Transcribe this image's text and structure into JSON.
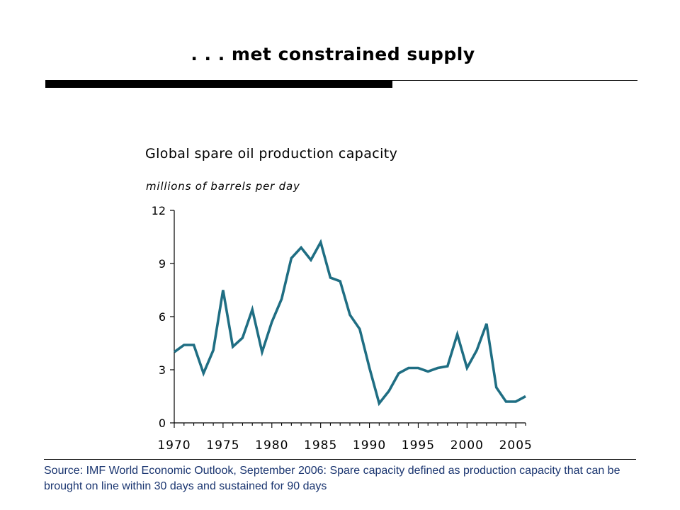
{
  "slide": {
    "title": ". . . met constrained supply",
    "source": "Source: IMF World Economic Outlook, September 2006: Spare capacity defined as production capacity that can be brought on line within 30 days and sustained for 90 days"
  },
  "chart_data": {
    "type": "line",
    "title": "Global spare oil production capacity",
    "subtitle": "millions of barrels per day",
    "xlabel": "",
    "ylabel": "",
    "xlim": [
      1970,
      2006
    ],
    "ylim": [
      0,
      12
    ],
    "x_ticks": [
      1970,
      1975,
      1980,
      1985,
      1990,
      1995,
      2000,
      2005
    ],
    "y_ticks": [
      0,
      3,
      6,
      9,
      12
    ],
    "grid": false,
    "line_color": "#1f6e83",
    "series": [
      {
        "x": [
          1970,
          1971,
          1972,
          1973,
          1974,
          1975,
          1976,
          1977,
          1978,
          1979,
          1980,
          1981,
          1982,
          1983,
          1984,
          1985,
          1986,
          1987,
          1988,
          1989,
          1990,
          1991,
          1992,
          1993,
          1994,
          1995,
          1996,
          1997,
          1998,
          1999,
          2000,
          2001,
          2002,
          2003,
          2004,
          2005,
          2006
        ],
        "values": [
          4.0,
          4.4,
          4.4,
          2.8,
          4.1,
          7.5,
          4.3,
          4.8,
          6.4,
          4.0,
          5.7,
          7.0,
          9.3,
          9.9,
          9.2,
          10.2,
          8.2,
          8.0,
          6.1,
          5.3,
          3.1,
          1.1,
          1.8,
          2.8,
          3.1,
          3.1,
          2.9,
          3.1,
          3.2,
          5.0,
          3.1,
          4.1,
          5.6,
          2.0,
          1.2,
          1.2,
          1.5
        ]
      }
    ]
  }
}
